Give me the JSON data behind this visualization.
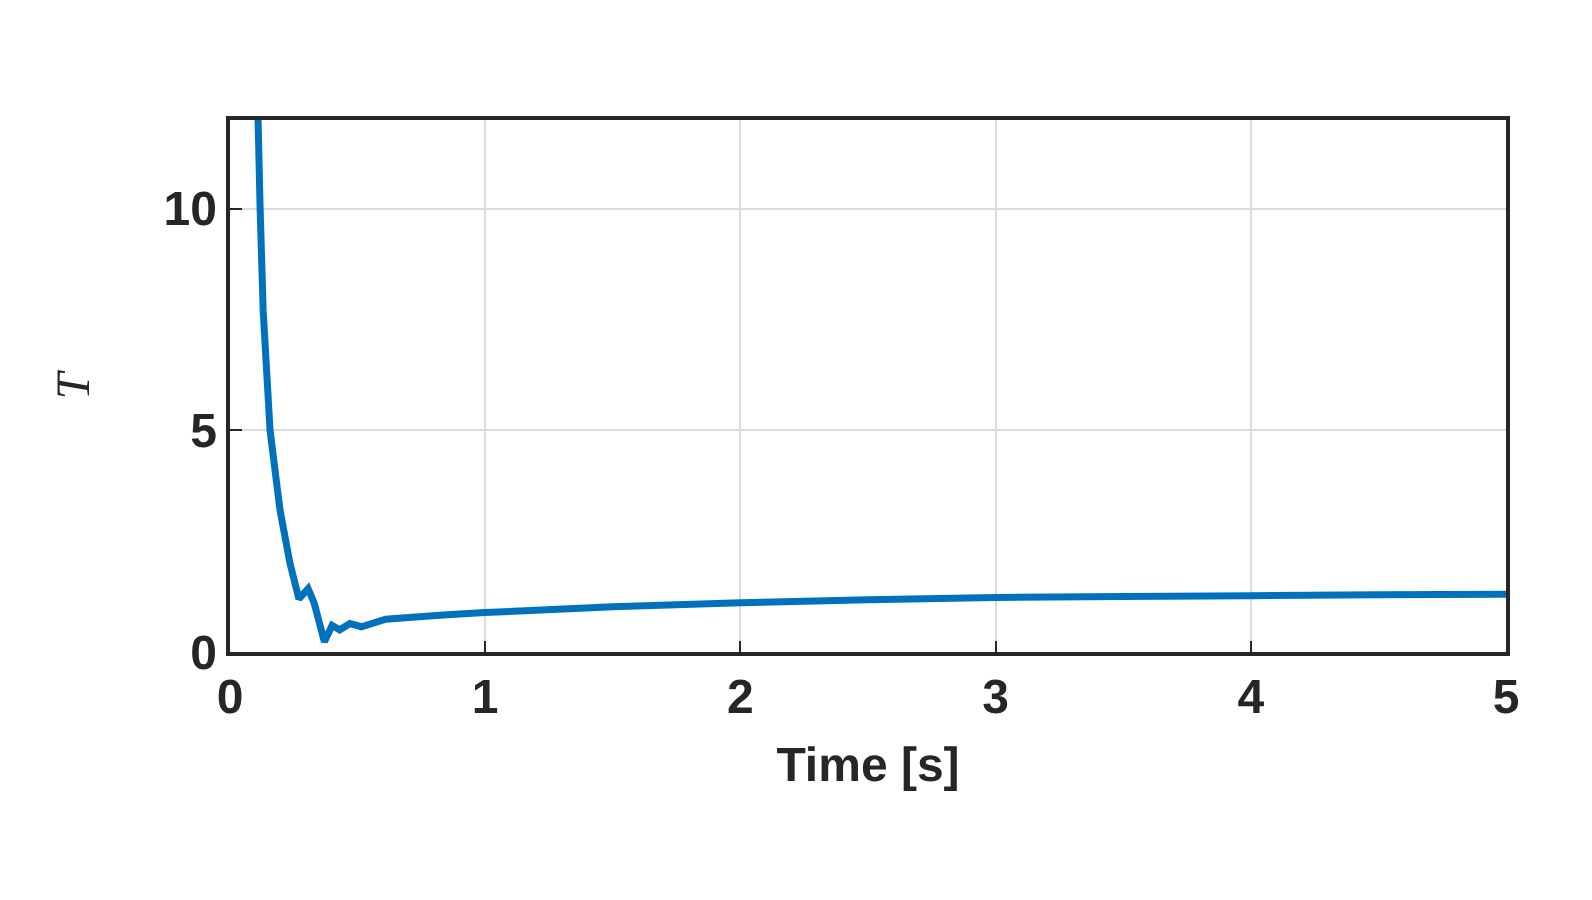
{
  "chart_data": {
    "type": "line",
    "xlabel": "Time [s]",
    "ylabel": "T",
    "series": [
      {
        "color": "#0072bd",
        "x": [
          0.11,
          0.118,
          0.13,
          0.157,
          0.196,
          0.235,
          0.27,
          0.306,
          0.33,
          0.37,
          0.4,
          0.43,
          0.47,
          0.515,
          0.61,
          0.7,
          0.85,
          1,
          1.5,
          2,
          2.5,
          3,
          3.5,
          4,
          4.5,
          5
        ],
        "values": [
          12,
          10,
          7.7,
          5,
          3.2,
          2,
          1.2,
          1.43,
          1.1,
          0.23,
          0.6,
          0.5,
          0.64,
          0.57,
          0.74,
          0.78,
          0.84,
          0.89,
          1.02,
          1.11,
          1.18,
          1.23,
          1.25,
          1.27,
          1.29,
          1.3
        ]
      }
    ],
    "xlim": [
      0,
      5
    ],
    "ylim": [
      0,
      12
    ],
    "xticks": [
      0,
      1,
      2,
      3,
      4,
      5
    ],
    "yticks": [
      0,
      5,
      10
    ],
    "grid": true,
    "marker": "none",
    "line_style": "solid"
  }
}
